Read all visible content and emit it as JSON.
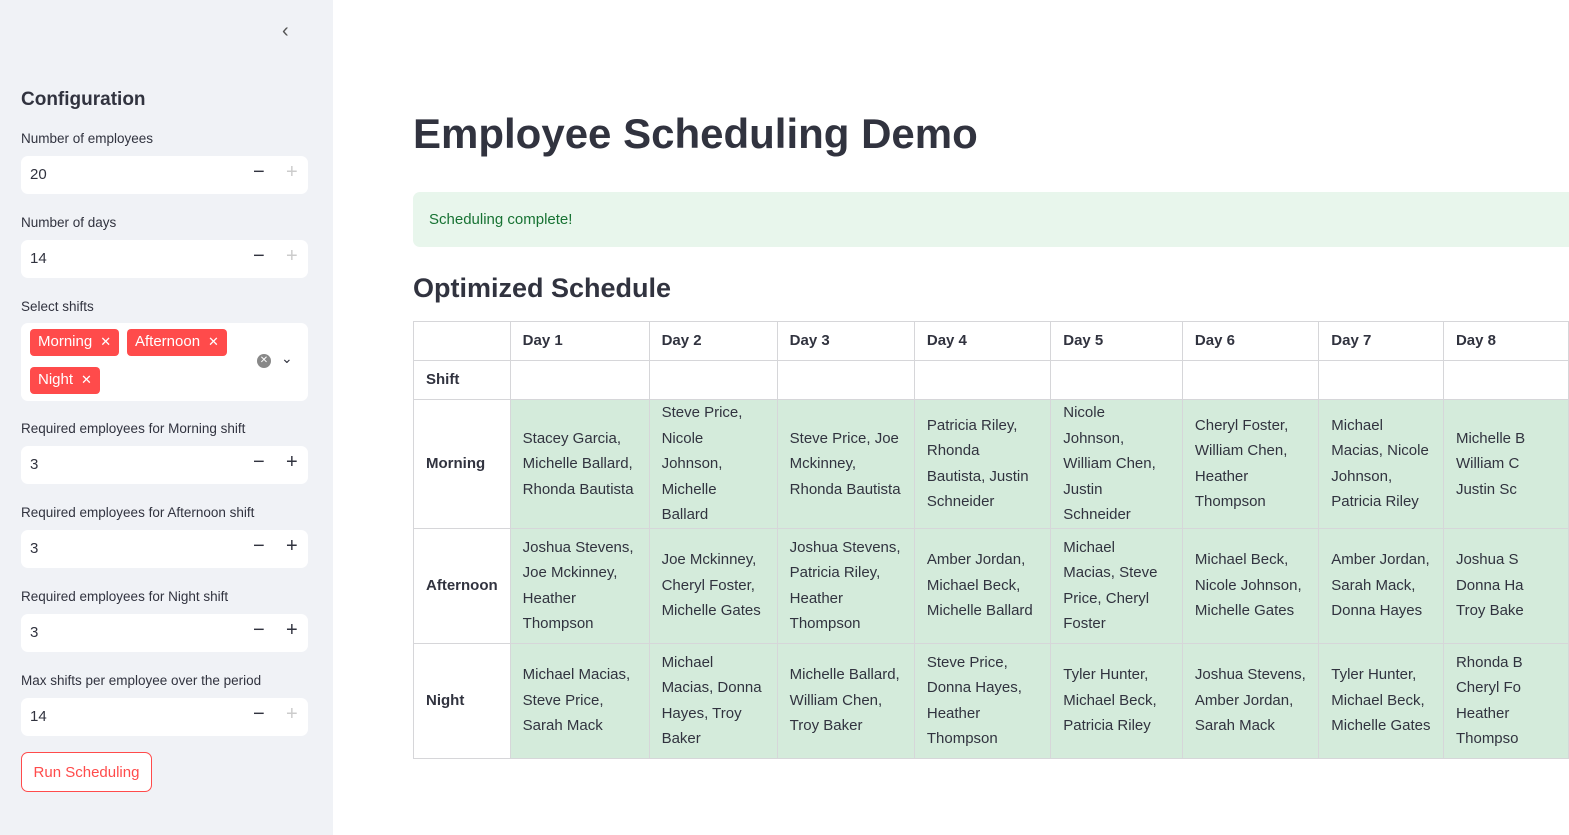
{
  "sidebar": {
    "title": "Configuration",
    "num_employees": {
      "label": "Number of employees",
      "value": "20"
    },
    "num_days": {
      "label": "Number of days",
      "value": "14"
    },
    "shifts": {
      "label": "Select shifts",
      "selected": [
        "Morning",
        "Afternoon",
        "Night"
      ]
    },
    "req_morning": {
      "label": "Required employees for Morning shift",
      "value": "3"
    },
    "req_afternoon": {
      "label": "Required employees for Afternoon shift",
      "value": "3"
    },
    "req_night": {
      "label": "Required employees for Night shift",
      "value": "3"
    },
    "max_shifts": {
      "label": "Max shifts per employee over the period",
      "value": "14"
    },
    "run_label": "Run Scheduling"
  },
  "main": {
    "title": "Employee Scheduling Demo",
    "alert": "Scheduling complete!",
    "subtitle": "Optimized Schedule",
    "table": {
      "columns": [
        "",
        "Day 1",
        "Day 2",
        "Day 3",
        "Day 4",
        "Day 5",
        "Day 6",
        "Day 7",
        "Day 8"
      ],
      "index_name": "Shift",
      "rows": [
        {
          "shift": "Morning",
          "cells": [
            "Stacey Garcia, Michelle Ballard, Rhonda Bautista",
            "Steve Price, Nicole Johnson, Michelle Ballard",
            "Steve Price, Joe Mckinney, Rhonda Bautista",
            "Patricia Riley, Rhonda Bautista, Justin Schneider",
            "Nicole Johnson, William Chen, Justin Schneider",
            "Cheryl Foster, William Chen, Heather Thompson",
            "Michael Macias, Nicole Johnson, Patricia Riley",
            "Michelle B William C Justin Sc"
          ]
        },
        {
          "shift": "Afternoon",
          "cells": [
            "Joshua Stevens, Joe Mckinney, Heather Thompson",
            "Joe Mckinney, Cheryl Foster, Michelle Gates",
            "Joshua Stevens, Patricia Riley, Heather Thompson",
            "Amber Jordan, Michael Beck, Michelle Ballard",
            "Michael Macias, Steve Price, Cheryl Foster",
            "Michael Beck, Nicole Johnson, Michelle Gates",
            "Amber Jordan, Sarah Mack, Donna Hayes",
            "Joshua S Donna Ha Troy Bake"
          ]
        },
        {
          "shift": "Night",
          "cells": [
            "Michael Macias, Steve Price, Sarah Mack",
            "Michael Macias, Donna Hayes, Troy Baker",
            "Michelle Ballard, William Chen, Troy Baker",
            "Steve Price, Donna Hayes, Heather Thompson",
            "Tyler Hunter, Michael Beck, Patricia Riley",
            "Joshua Stevens, Amber Jordan, Sarah Mack",
            "Tyler Hunter, Michael Beck, Michelle Gates",
            "Rhonda B Cheryl Fo Heather Thompso"
          ]
        }
      ]
    }
  },
  "colors": {
    "accent": "#ff4b4b",
    "sidebar_bg": "#f0f2f6",
    "alert_bg": "#e8f6ec",
    "cell_bg": "#d4ebdb"
  }
}
